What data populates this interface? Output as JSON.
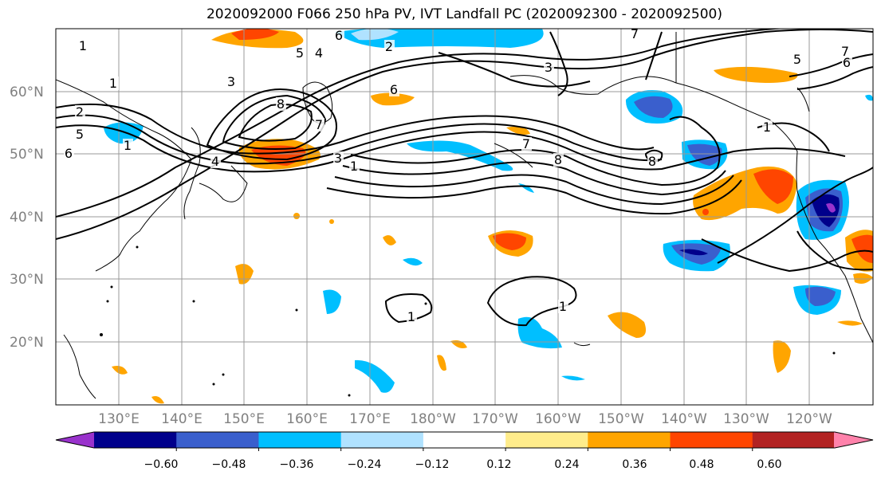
{
  "title": "2020092000 F066 250 hPa PV, IVT Landfall PC (2020092300 - 2020092500)",
  "lat_labels": [
    "60°N",
    "50°N",
    "40°N",
    "30°N",
    "20°N"
  ],
  "lon_labels": [
    "130°E",
    "140°E",
    "150°E",
    "160°E",
    "170°E",
    "180°W",
    "170°W",
    "160°W",
    "150°W",
    "140°W",
    "130°W",
    "120°W"
  ],
  "contour_labels": [
    "1",
    "1",
    "2",
    "5",
    "6",
    "1",
    "3",
    "4",
    "6",
    "8",
    "7",
    "3",
    "1",
    "4",
    "5",
    "2",
    "6",
    "7",
    "8",
    "7",
    "3",
    "8",
    "7",
    "5",
    "6",
    "1",
    "1",
    "1"
  ],
  "colorbar": {
    "ticks": [
      "−0.60",
      "−0.48",
      "−0.36",
      "−0.24",
      "−0.12",
      "0.12",
      "0.24",
      "0.36",
      "0.48",
      "0.60"
    ],
    "colors": [
      "#9932cc",
      "#00008b",
      "#3a5fcd",
      "#00bfff",
      "#b0e2ff",
      "#ffffff",
      "#ffec8b",
      "#ffa500",
      "#ff4500",
      "#b22222",
      "#ff82ab"
    ]
  }
}
